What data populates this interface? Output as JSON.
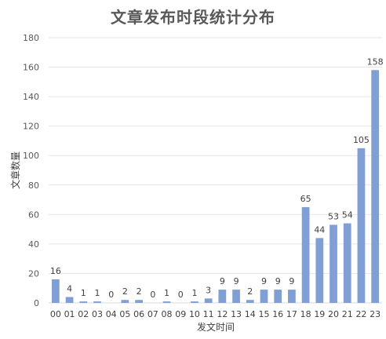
{
  "chart_data": {
    "type": "bar",
    "title": "文章发布时段统计分布",
    "xlabel": "发文时间",
    "ylabel": "文章数量",
    "categories": [
      "00",
      "01",
      "02",
      "03",
      "04",
      "05",
      "06",
      "07",
      "08",
      "09",
      "10",
      "11",
      "12",
      "13",
      "14",
      "15",
      "16",
      "17",
      "18",
      "19",
      "20",
      "21",
      "22",
      "23"
    ],
    "values": [
      16,
      4,
      1,
      1,
      0,
      2,
      2,
      0,
      1,
      0,
      1,
      3,
      9,
      9,
      2,
      9,
      9,
      9,
      65,
      44,
      53,
      54,
      105,
      158
    ],
    "ylim": [
      0,
      180
    ],
    "yticks": [
      0,
      20,
      40,
      60,
      80,
      100,
      120,
      140,
      160,
      180
    ],
    "grid": true,
    "legend": "none",
    "bar_color": "#7f9fd6"
  }
}
